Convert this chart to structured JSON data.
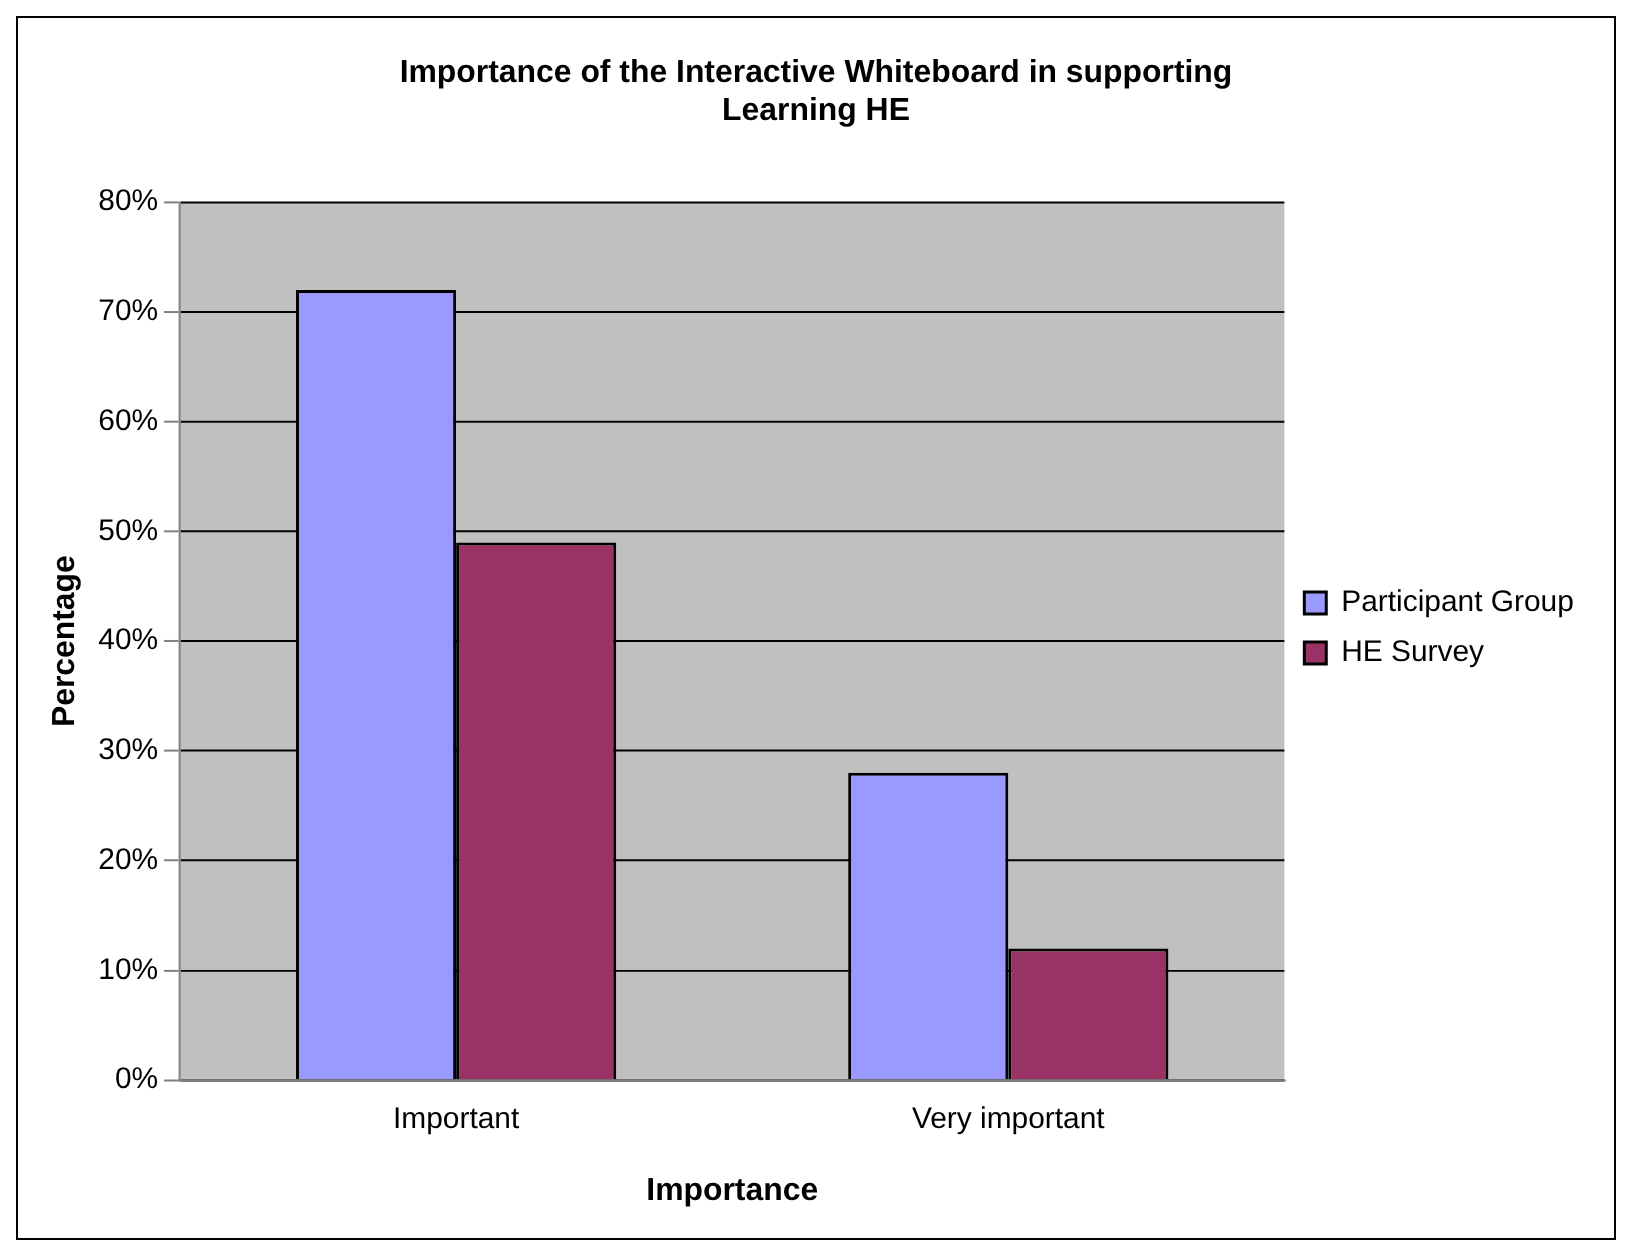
{
  "chart_data": {
    "type": "bar",
    "title": "Importance of the Interactive Whiteboard in supporting Learning HE",
    "xlabel": "Importance",
    "ylabel": "Percentage",
    "categories": [
      "Important",
      "Very important"
    ],
    "series": [
      {
        "name": "Participant Group",
        "color": "#9999ff",
        "values": [
          72,
          28
        ]
      },
      {
        "name": "HE Survey",
        "color": "#993366",
        "values": [
          49,
          12
        ]
      }
    ],
    "ylim": [
      0,
      80
    ],
    "yticks": [
      {
        "value": 0,
        "label": "0%"
      },
      {
        "value": 10,
        "label": "10%"
      },
      {
        "value": 20,
        "label": "20%"
      },
      {
        "value": 30,
        "label": "30%"
      },
      {
        "value": 40,
        "label": "40%"
      },
      {
        "value": 50,
        "label": "50%"
      },
      {
        "value": 60,
        "label": "60%"
      },
      {
        "value": 70,
        "label": "70%"
      },
      {
        "value": 80,
        "label": "80%"
      }
    ],
    "grid": "y",
    "legend": "right"
  }
}
